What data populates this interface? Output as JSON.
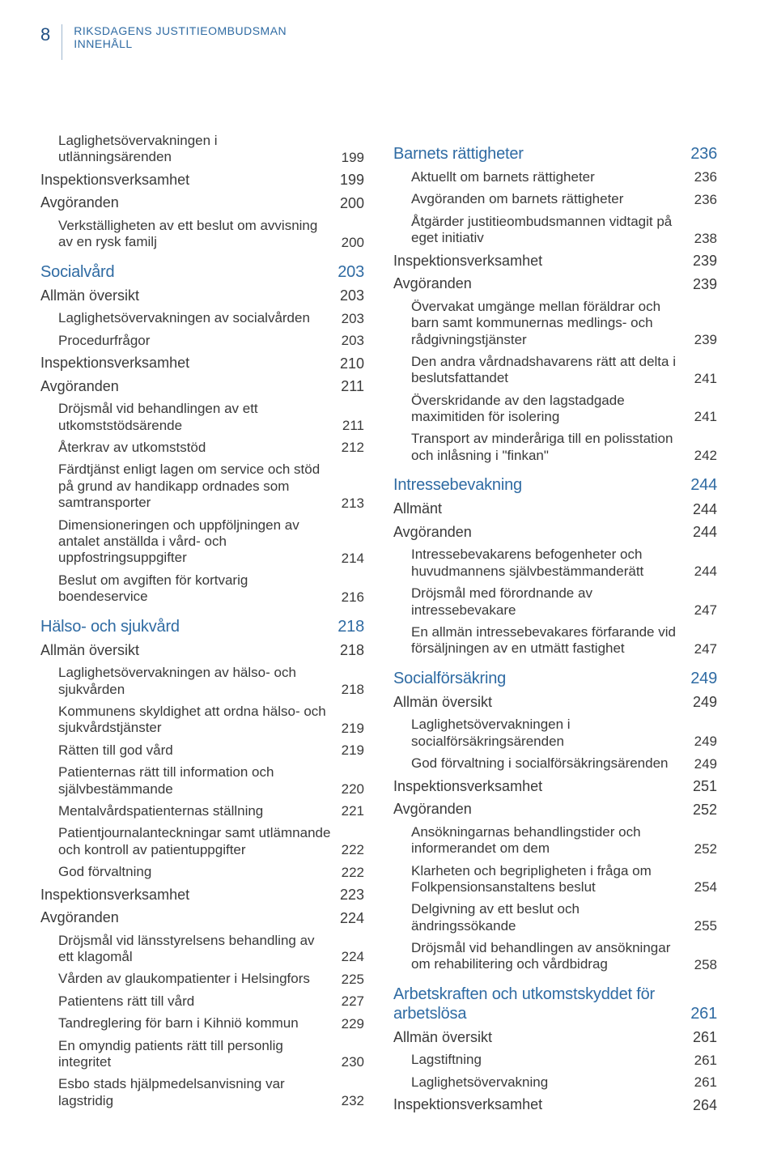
{
  "page_number": "8",
  "header_line1": "RIKSDAGENS JUSTITIEOMBUDSMAN",
  "header_line2": "INNEHÅLL",
  "colors": {
    "accent": "#2f6ba3",
    "text": "#3a3a3a",
    "divider": "#9fb6ce",
    "background": "#ffffff"
  },
  "fontsizes": {
    "section": 20,
    "level1": 18,
    "level2": 17,
    "header": 14,
    "page_num": 22
  },
  "left": [
    {
      "lvl": 2,
      "t": "Laglighetsövervakningen i utlänningsärenden",
      "p": "199"
    },
    {
      "lvl": 1,
      "t": "Inspektionsverksamhet",
      "p": "199"
    },
    {
      "lvl": 1,
      "t": "Avgöranden",
      "p": "200"
    },
    {
      "lvl": 2,
      "t": "Verkställigheten av ett beslut om avvisning av en rysk familj",
      "p": "200"
    },
    {
      "lvl": 0,
      "t": "Socialvård",
      "p": "203"
    },
    {
      "lvl": 1,
      "t": "Allmän översikt",
      "p": "203"
    },
    {
      "lvl": 2,
      "t": "Laglighetsövervakningen av socialvården",
      "p": "203"
    },
    {
      "lvl": 2,
      "t": "Procedurfrågor",
      "p": "203"
    },
    {
      "lvl": 1,
      "t": "Inspektionsverksamhet",
      "p": "210"
    },
    {
      "lvl": 1,
      "t": "Avgöranden",
      "p": "211"
    },
    {
      "lvl": 2,
      "t": "Dröjsmål vid behandlingen av ett utkomststödsärende",
      "p": "211"
    },
    {
      "lvl": 2,
      "t": "Återkrav av utkomststöd",
      "p": "212"
    },
    {
      "lvl": 2,
      "t": "Färdtjänst enligt lagen om service och stöd på grund av handikapp ordnades som samtransporter",
      "p": "213"
    },
    {
      "lvl": 2,
      "t": "Dimensioneringen och uppföljningen av antalet anställda i vård- och uppfostringsuppgifter",
      "p": "214"
    },
    {
      "lvl": 2,
      "t": "Beslut om avgiften för kortvarig boendeservice",
      "p": "216"
    },
    {
      "lvl": 0,
      "t": "Hälso- och sjukvård",
      "p": "218"
    },
    {
      "lvl": 1,
      "t": "Allmän översikt",
      "p": "218"
    },
    {
      "lvl": 2,
      "t": "Laglighetsövervakningen av hälso- och sjukvården",
      "p": "218"
    },
    {
      "lvl": 2,
      "t": "Kommunens skyldighet att ordna hälso- och sjukvårdstjänster",
      "p": "219"
    },
    {
      "lvl": 2,
      "t": "Rätten till god vård",
      "p": "219"
    },
    {
      "lvl": 2,
      "t": "Patienternas rätt till information och självbestämmande",
      "p": "220"
    },
    {
      "lvl": 2,
      "t": "Mentalvårdspatienternas ställning",
      "p": "221"
    },
    {
      "lvl": 2,
      "t": "Patientjournalanteckningar samt utlämnande och kontroll av patientuppgifter",
      "p": "222"
    },
    {
      "lvl": 2,
      "t": "God förvaltning",
      "p": "222"
    },
    {
      "lvl": 1,
      "t": "Inspektionsverksamhet",
      "p": "223"
    },
    {
      "lvl": 1,
      "t": "Avgöranden",
      "p": "224"
    },
    {
      "lvl": 2,
      "t": "Dröjsmål vid länsstyrelsens behandling av ett klagomål",
      "p": "224"
    },
    {
      "lvl": 2,
      "t": "Vården av glaukompatienter i Helsingfors",
      "p": "225"
    },
    {
      "lvl": 2,
      "t": "Patientens rätt till vård",
      "p": "227"
    },
    {
      "lvl": 2,
      "t": "Tandreglering för barn i Kihniö kommun",
      "p": "229"
    },
    {
      "lvl": 2,
      "t": "En omyndig patients rätt till personlig integritet",
      "p": "230"
    },
    {
      "lvl": 2,
      "t": "Esbo stads hjälpmedelsanvisning var lagstridig",
      "p": "232"
    }
  ],
  "right": [
    {
      "lvl": 0,
      "t": "Barnets rättigheter",
      "p": "236"
    },
    {
      "lvl": 2,
      "t": "Aktuellt om barnets rättigheter",
      "p": "236"
    },
    {
      "lvl": 2,
      "t": "Avgöranden om barnets rättigheter",
      "p": "236"
    },
    {
      "lvl": 2,
      "t": "Åtgärder justitieombudsmannen vidtagit på eget initiativ",
      "p": "238"
    },
    {
      "lvl": 1,
      "t": "Inspektionsverksamhet",
      "p": "239"
    },
    {
      "lvl": 1,
      "t": "Avgöranden",
      "p": "239"
    },
    {
      "lvl": 2,
      "t": "Övervakat umgänge mellan föräldrar och barn samt kommunernas medlings- och rådgivningstjänster",
      "p": "239"
    },
    {
      "lvl": 2,
      "t": "Den andra vårdnadshavarens rätt att delta i beslutsfattandet",
      "p": "241"
    },
    {
      "lvl": 2,
      "t": "Överskridande av den lagstadgade maximitiden för isolering",
      "p": "241"
    },
    {
      "lvl": 2,
      "t": "Transport av minderåriga till en polisstation och inlåsning i \"finkan\"",
      "p": "242"
    },
    {
      "lvl": 0,
      "t": "Intressebevakning",
      "p": "244"
    },
    {
      "lvl": 1,
      "t": "Allmänt",
      "p": "244"
    },
    {
      "lvl": 1,
      "t": "Avgöranden",
      "p": "244"
    },
    {
      "lvl": 2,
      "t": "Intressebevakarens befogenheter och huvudmannens självbestämmanderätt",
      "p": "244"
    },
    {
      "lvl": 2,
      "t": "Dröjsmål med förordnande av intressebevakare",
      "p": "247"
    },
    {
      "lvl": 2,
      "t": "En allmän intressebevakares förfarande vid försäljningen av en utmätt fastighet",
      "p": "247"
    },
    {
      "lvl": 0,
      "t": "Socialförsäkring",
      "p": "249"
    },
    {
      "lvl": 1,
      "t": "Allmän översikt",
      "p": "249"
    },
    {
      "lvl": 2,
      "t": "Laglighetsövervakningen i socialförsäkringsärenden",
      "p": "249"
    },
    {
      "lvl": 2,
      "t": "God förvaltning i socialförsäkringsärenden",
      "p": "249"
    },
    {
      "lvl": 1,
      "t": "Inspektionsverksamhet",
      "p": "251"
    },
    {
      "lvl": 1,
      "t": "Avgöranden",
      "p": "252"
    },
    {
      "lvl": 2,
      "t": "Ansökningarnas behandlingstider och informerandet om dem",
      "p": "252"
    },
    {
      "lvl": 2,
      "t": "Klarheten och begripligheten i fråga om Folkpensionsanstaltens beslut",
      "p": "254"
    },
    {
      "lvl": 2,
      "t": "Delgivning av ett beslut och ändringssökande",
      "p": "255"
    },
    {
      "lvl": 2,
      "t": "Dröjsmål vid behandlingen av ansökningar om rehabilitering och vårdbidrag",
      "p": "258"
    },
    {
      "lvl": 0,
      "t": "Arbetskraften och utkomstskyddet för arbetslösa",
      "p": "261"
    },
    {
      "lvl": 1,
      "t": "Allmän översikt",
      "p": "261"
    },
    {
      "lvl": 2,
      "t": "Lagstiftning",
      "p": "261"
    },
    {
      "lvl": 2,
      "t": "Laglighetsövervakning",
      "p": "261"
    },
    {
      "lvl": 1,
      "t": "Inspektionsverksamhet",
      "p": "264"
    }
  ]
}
